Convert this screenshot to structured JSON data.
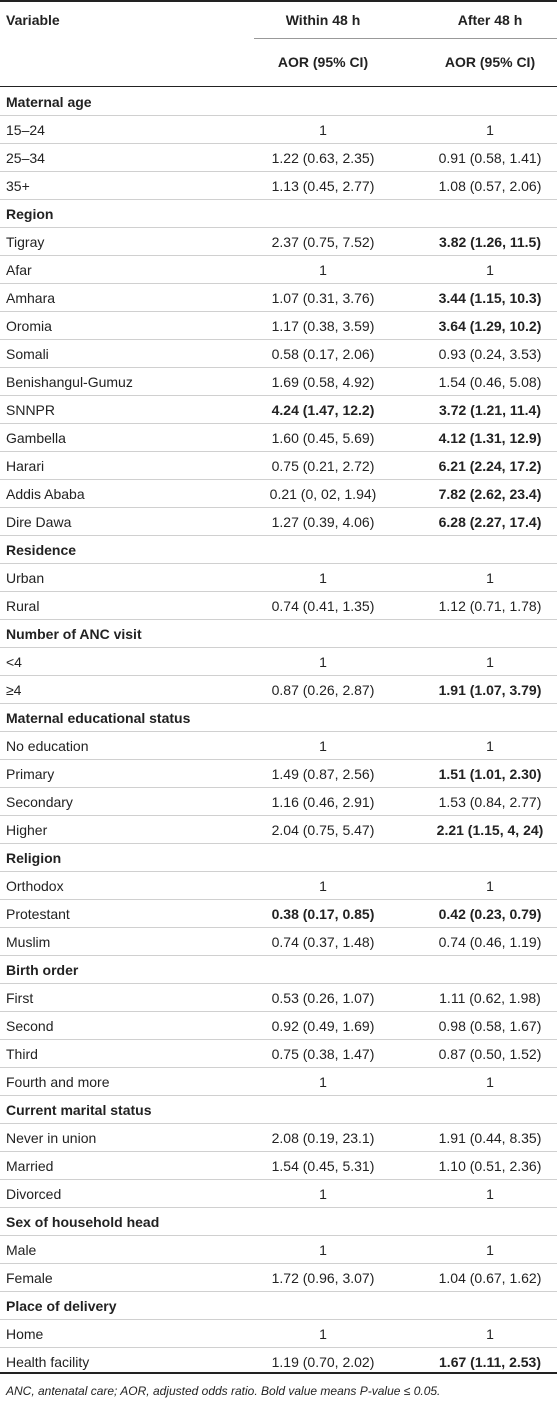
{
  "header": {
    "variable": "Variable",
    "within": "Within 48 h",
    "after": "After 48 h",
    "aor_within": "AOR (95% CI)",
    "aor_after": "AOR (95% CI)"
  },
  "rows": [
    {
      "label": "Maternal age",
      "section": true
    },
    {
      "label": "15–24",
      "v1": "1",
      "v2": "1"
    },
    {
      "label": "25–34",
      "v1": "1.22 (0.63, 2.35)",
      "v2": "0.91 (0.58, 1.41)"
    },
    {
      "label": "35+",
      "v1": "1.13 (0.45, 2.77)",
      "v2": "1.08 (0.57, 2.06)"
    },
    {
      "label": "Region",
      "section": true
    },
    {
      "label": "Tigray",
      "v1": "2.37 (0.75, 7.52)",
      "v2": "3.82 (1.26, 11.5)",
      "b2": true
    },
    {
      "label": "Afar",
      "v1": "1",
      "v2": "1"
    },
    {
      "label": "Amhara",
      "v1": "1.07 (0.31, 3.76)",
      "v2": "3.44 (1.15, 10.3)",
      "b2": true
    },
    {
      "label": "Oromia",
      "v1": "1.17 (0.38, 3.59)",
      "v2": "3.64 (1.29, 10.2)",
      "b2": true
    },
    {
      "label": "Somali",
      "v1": "0.58 (0.17, 2.06)",
      "v2": "0.93 (0.24, 3.53)"
    },
    {
      "label": "Benishangul-Gumuz",
      "v1": "1.69 (0.58, 4.92)",
      "v2": "1.54 (0.46, 5.08)"
    },
    {
      "label": "SNNPR",
      "v1": "4.24 (1.47, 12.2)",
      "v2": "3.72 (1.21, 11.4)",
      "b1": true,
      "b2": true
    },
    {
      "label": "Gambella",
      "v1": "1.60 (0.45, 5.69)",
      "v2": "4.12 (1.31, 12.9)",
      "b2": true
    },
    {
      "label": "Harari",
      "v1": "0.75 (0.21, 2.72)",
      "v2": "6.21 (2.24, 17.2)",
      "b2": true
    },
    {
      "label": "Addis Ababa",
      "v1": "0.21 (0, 02, 1.94)",
      "v2": "7.82 (2.62, 23.4)",
      "b2": true
    },
    {
      "label": "Dire Dawa",
      "v1": "1.27 (0.39, 4.06)",
      "v2": "6.28 (2.27, 17.4)",
      "b2": true
    },
    {
      "label": "Residence",
      "section": true
    },
    {
      "label": "Urban",
      "v1": "1",
      "v2": "1"
    },
    {
      "label": "Rural",
      "v1": "0.74 (0.41, 1.35)",
      "v2": "1.12 (0.71, 1.78)"
    },
    {
      "label": "Number of ANC visit",
      "section": true
    },
    {
      "label": "<4",
      "v1": "1",
      "v2": "1"
    },
    {
      "label": "≥4",
      "v1": "0.87 (0.26, 2.87)",
      "v2": "1.91 (1.07, 3.79)",
      "b2": true
    },
    {
      "label": "Maternal educational status",
      "section": true
    },
    {
      "label": "No education",
      "v1": "1",
      "v2": "1"
    },
    {
      "label": "Primary",
      "v1": "1.49 (0.87, 2.56)",
      "v2": "1.51 (1.01, 2.30)",
      "b2": true
    },
    {
      "label": "Secondary",
      "v1": "1.16 (0.46, 2.91)",
      "v2": "1.53 (0.84, 2.77)"
    },
    {
      "label": "Higher",
      "v1": "2.04 (0.75, 5.47)",
      "v2": "2.21 (1.15, 4, 24)",
      "b2": true
    },
    {
      "label": "Religion",
      "section": true
    },
    {
      "label": "Orthodox",
      "v1": "1",
      "v2": "1"
    },
    {
      "label": "Protestant",
      "v1": "0.38 (0.17, 0.85)",
      "v2": "0.42 (0.23, 0.79)",
      "b1": true,
      "b2": true
    },
    {
      "label": "Muslim",
      "v1": "0.74 (0.37, 1.48)",
      "v2": "0.74 (0.46, 1.19)"
    },
    {
      "label": "Birth order",
      "section": true
    },
    {
      "label": "First",
      "v1": "0.53 (0.26, 1.07)",
      "v2": "1.11 (0.62, 1.98)"
    },
    {
      "label": "Second",
      "v1": "0.92 (0.49, 1.69)",
      "v2": "0.98 (0.58, 1.67)"
    },
    {
      "label": "Third",
      "v1": "0.75 (0.38, 1.47)",
      "v2": "0.87 (0.50, 1.52)"
    },
    {
      "label": "Fourth and more",
      "v1": "1",
      "v2": "1"
    },
    {
      "label": "Current marital status",
      "section": true
    },
    {
      "label": "Never in union",
      "v1": "2.08 (0.19, 23.1)",
      "v2": "1.91 (0.44, 8.35)"
    },
    {
      "label": "Married",
      "v1": "1.54 (0.45, 5.31)",
      "v2": "1.10 (0.51, 2.36)"
    },
    {
      "label": "Divorced",
      "v1": "1",
      "v2": "1"
    },
    {
      "label": "Sex of household head",
      "section": true
    },
    {
      "label": "Male",
      "v1": "1",
      "v2": "1"
    },
    {
      "label": "Female",
      "v1": "1.72 (0.96, 3.07)",
      "v2": "1.04 (0.67, 1.62)"
    },
    {
      "label": "Place of delivery",
      "section": true
    },
    {
      "label": "Home",
      "v1": "1",
      "v2": "1"
    },
    {
      "label": "Health facility",
      "v1": "1.19 (0.70, 2.02)",
      "v2": "1.67 (1.11, 2.53)",
      "b2": true
    }
  ],
  "footnote": "ANC, antenatal care; AOR, adjusted odds ratio. Bold value means P-value ≤ 0.05."
}
